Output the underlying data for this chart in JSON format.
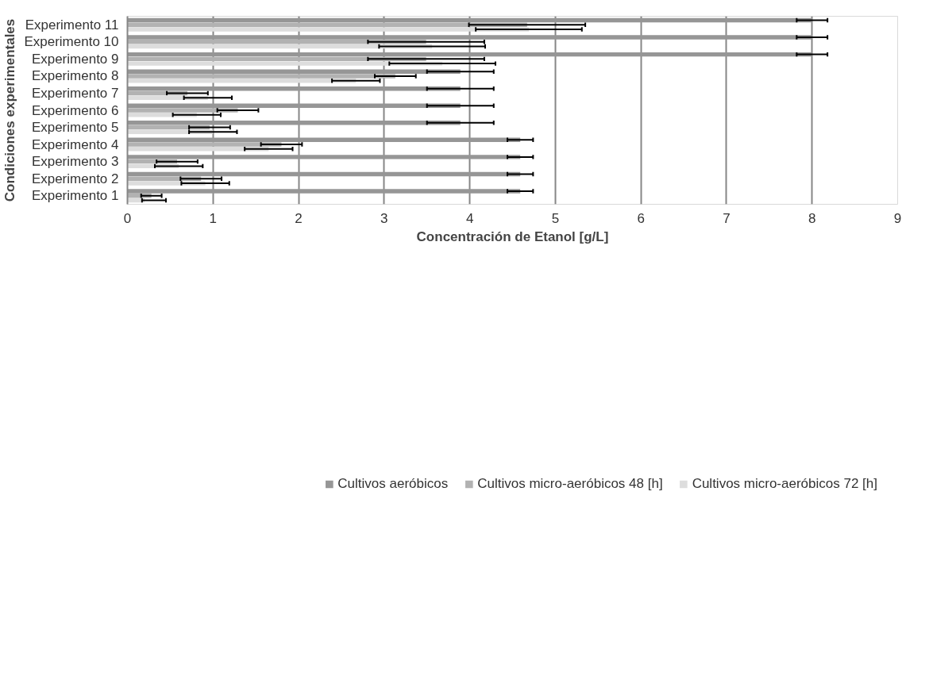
{
  "chart_data": {
    "type": "bar",
    "orientation": "horizontal",
    "xlabel": "Concentración de Etanol [g/L]",
    "ylabel": "Condiciones experimentales",
    "categories": [
      "Experimento 11",
      "Experimento 10",
      "Experimento 9",
      "Experimento 8",
      "Experimento 7",
      "Experimento 6",
      "Experimento 5",
      "Experimento 4",
      "Experimento 3",
      "Experimento 2",
      "Experimento 1"
    ],
    "series": [
      {
        "name": "Cultivos aeróbicos",
        "color": "#969696",
        "values": [
          8.0,
          8.0,
          8.0,
          3.89,
          3.89,
          3.89,
          3.89,
          4.59,
          4.59,
          4.59,
          4.59
        ],
        "errors": [
          0.18,
          0.18,
          0.18,
          0.39,
          0.39,
          0.39,
          0.39,
          0.15,
          0.15,
          0.15,
          0.15
        ]
      },
      {
        "name": "Cultivos micro-aeróbicos 48 [h]",
        "color": "#b2b2b2",
        "values": [
          4.67,
          3.49,
          3.49,
          3.13,
          0.7,
          1.29,
          0.96,
          1.8,
          0.58,
          0.86,
          0.28
        ],
        "errors": [
          0.68,
          0.68,
          0.68,
          0.24,
          0.24,
          0.24,
          0.24,
          0.24,
          0.24,
          0.24,
          0.12
        ]
      },
      {
        "name": "Cultivos micro-aeróbicos 72 [h]",
        "color": "#dddddd",
        "values": [
          4.69,
          3.56,
          3.68,
          2.67,
          0.94,
          0.81,
          1.0,
          1.65,
          0.6,
          0.91,
          0.2
        ],
        "errors": [
          0.62,
          0.62,
          0.62,
          0.28,
          0.28,
          0.28,
          0.28,
          0.28,
          0.28,
          0.28,
          [
            0.17,
            0.45
          ]
        ]
      }
    ],
    "xlim": [
      0,
      9
    ],
    "xticks": [
      0,
      1,
      2,
      3,
      4,
      5,
      6,
      7,
      8,
      9
    ],
    "grid": "x",
    "legend": "bottom"
  }
}
